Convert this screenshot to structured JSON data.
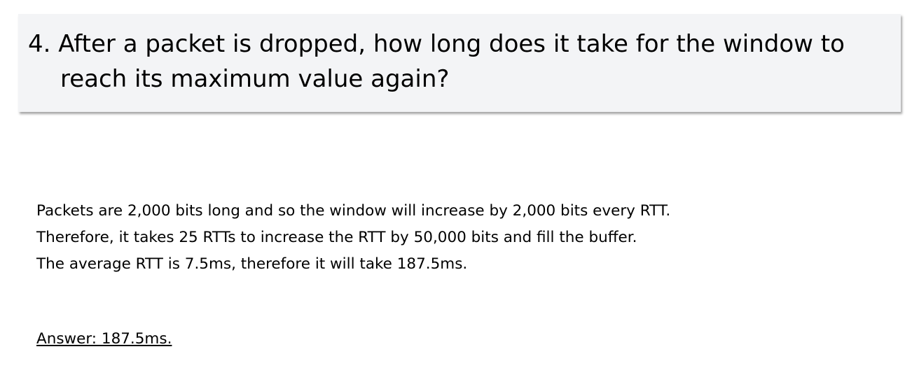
{
  "question": {
    "title": "4. After a packet is dropped, how long does it take for the window to reach its maximum value again?"
  },
  "explanation": {
    "lines": [
      "Packets are 2,000 bits long and so the window will increase by 2,000 bits every RTT.",
      "Therefore, it takes 25 RTTs to increase the RTT by 50,000 bits and fill the buffer.",
      "The average RTT is 7.5ms, therefore it will take 187.5ms."
    ]
  },
  "answer": {
    "text": "Answer: 187.5ms."
  }
}
